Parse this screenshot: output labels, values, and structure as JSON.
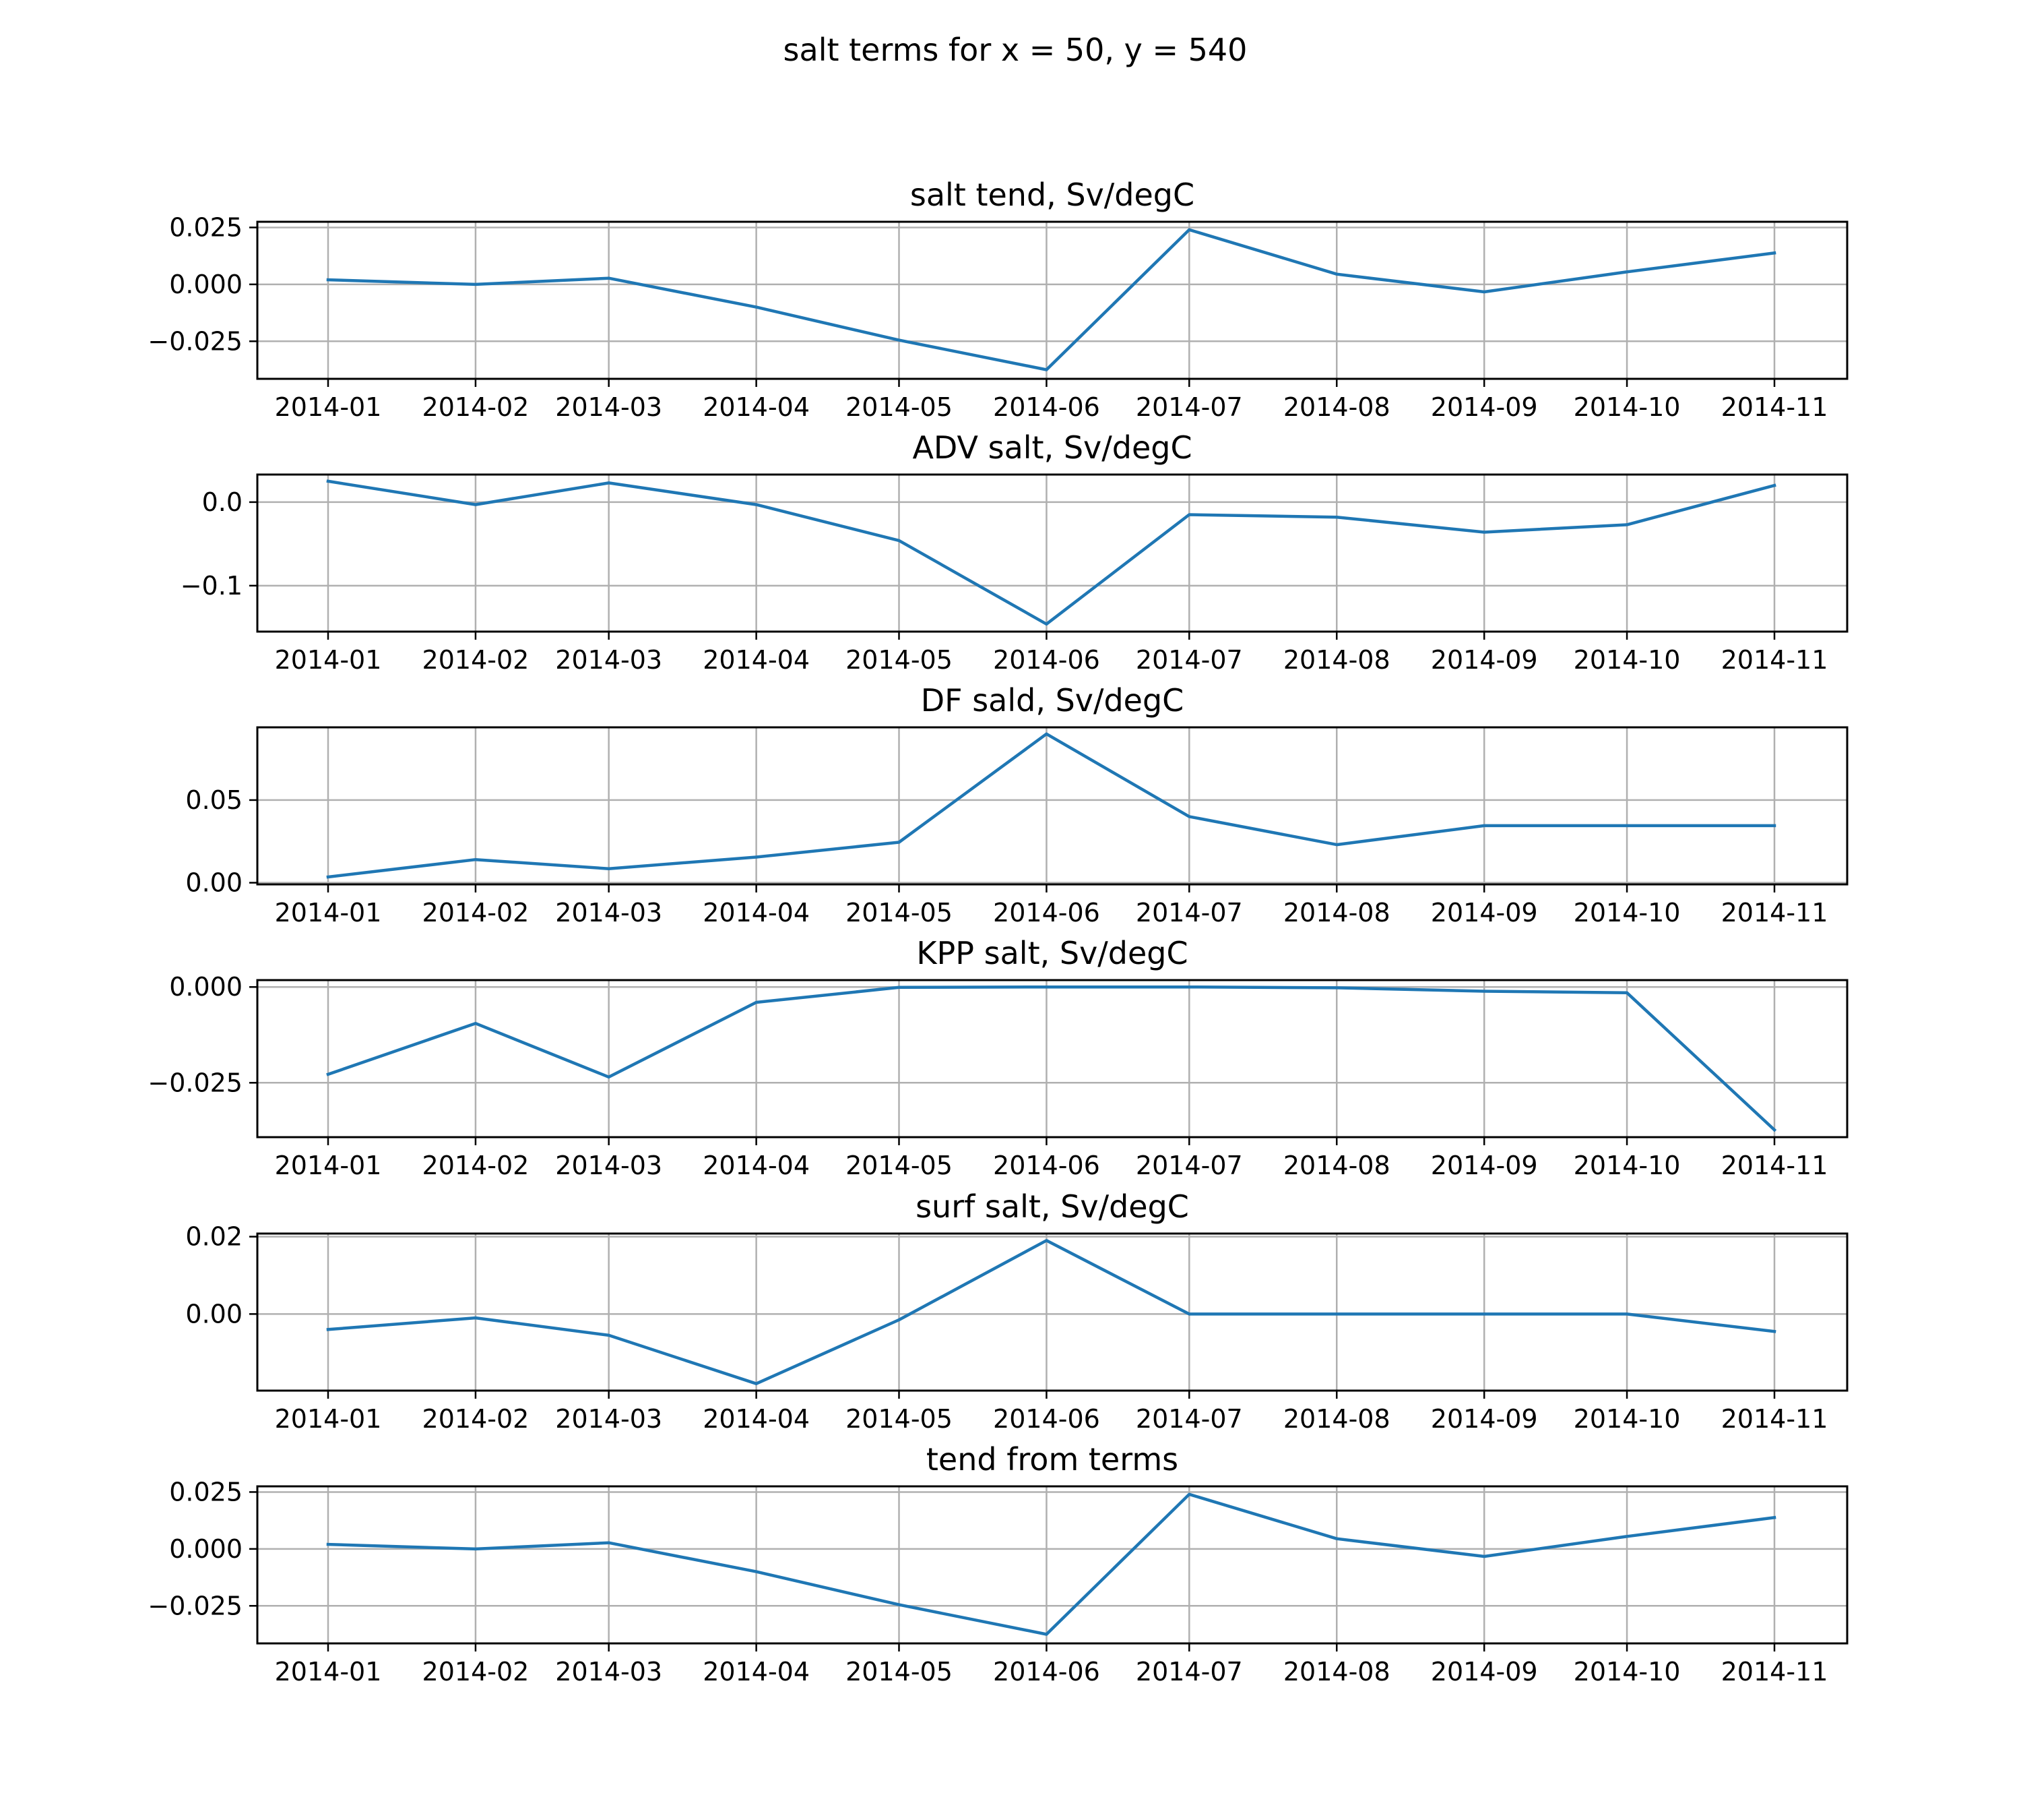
{
  "figure": {
    "suptitle": "salt terms for x = 50, y = 540"
  },
  "colors": {
    "series": "#1f77b4",
    "grid": "#b0b0b0"
  },
  "chart_data": [
    {
      "type": "line",
      "title": "salt tend, Sv/degC",
      "categories": [
        "2014-01",
        "2014-02",
        "2014-03",
        "2014-04",
        "2014-05",
        "2014-06",
        "2014-07",
        "2014-08",
        "2014-09",
        "2014-10",
        "2014-11"
      ],
      "x_day_offsets": [
        0,
        31,
        59,
        90,
        120,
        151,
        181,
        212,
        243,
        273,
        304
      ],
      "values": [
        0.002,
        0.0,
        0.0027,
        -0.01,
        -0.0245,
        -0.0375,
        0.024,
        0.0045,
        -0.0033,
        0.0055,
        0.0138
      ],
      "ylim": [
        -0.0415,
        0.0275
      ],
      "yticks": [
        -0.025,
        0.0,
        0.025
      ],
      "ytick_labels": [
        "−0.025",
        "0.000",
        "0.025"
      ],
      "grid": true
    },
    {
      "type": "line",
      "title": "ADV salt, Sv/degC",
      "categories": [
        "2014-01",
        "2014-02",
        "2014-03",
        "2014-04",
        "2014-05",
        "2014-06",
        "2014-07",
        "2014-08",
        "2014-09",
        "2014-10",
        "2014-11"
      ],
      "x_day_offsets": [
        0,
        31,
        59,
        90,
        120,
        151,
        181,
        212,
        243,
        273,
        304
      ],
      "values": [
        0.025,
        -0.003,
        0.023,
        -0.003,
        -0.046,
        -0.146,
        -0.015,
        -0.018,
        -0.036,
        -0.027,
        0.02
      ],
      "ylim": [
        -0.155,
        0.033
      ],
      "yticks": [
        -0.1,
        0.0
      ],
      "ytick_labels": [
        "−0.1",
        "0.0"
      ],
      "grid": true
    },
    {
      "type": "line",
      "title": "DF sald, Sv/degC",
      "categories": [
        "2014-01",
        "2014-02",
        "2014-03",
        "2014-04",
        "2014-05",
        "2014-06",
        "2014-07",
        "2014-08",
        "2014-09",
        "2014-10",
        "2014-11"
      ],
      "x_day_offsets": [
        0,
        31,
        59,
        90,
        120,
        151,
        181,
        212,
        243,
        273,
        304
      ],
      "values": [
        0.0035,
        0.014,
        0.0085,
        0.0155,
        0.0245,
        0.09,
        0.04,
        0.023,
        0.0345,
        0.0345,
        0.0345
      ],
      "ylim": [
        -0.001,
        0.094
      ],
      "yticks": [
        0.0,
        0.05
      ],
      "ytick_labels": [
        "0.00",
        "0.05"
      ],
      "grid": true
    },
    {
      "type": "line",
      "title": "KPP salt, Sv/degC",
      "categories": [
        "2014-01",
        "2014-02",
        "2014-03",
        "2014-04",
        "2014-05",
        "2014-06",
        "2014-07",
        "2014-08",
        "2014-09",
        "2014-10",
        "2014-11"
      ],
      "x_day_offsets": [
        0,
        31,
        59,
        90,
        120,
        151,
        181,
        212,
        243,
        273,
        304
      ],
      "values": [
        -0.0228,
        -0.0095,
        -0.0235,
        -0.004,
        -0.0001,
        0.0,
        0.0,
        -0.0002,
        -0.0011,
        -0.0015,
        -0.0373
      ],
      "ylim": [
        -0.0392,
        0.0018
      ],
      "yticks": [
        -0.025,
        0.0
      ],
      "ytick_labels": [
        "−0.025",
        "0.000"
      ],
      "grid": true
    },
    {
      "type": "line",
      "title": "surf salt, Sv/degC",
      "categories": [
        "2014-01",
        "2014-02",
        "2014-03",
        "2014-04",
        "2014-05",
        "2014-06",
        "2014-07",
        "2014-08",
        "2014-09",
        "2014-10",
        "2014-11"
      ],
      "x_day_offsets": [
        0,
        31,
        59,
        90,
        120,
        151,
        181,
        212,
        243,
        273,
        304
      ],
      "values": [
        -0.004,
        -0.001,
        -0.0055,
        -0.018,
        -0.0015,
        0.019,
        0.0,
        0.0,
        0.0,
        0.0,
        -0.0045
      ],
      "ylim": [
        -0.0198,
        0.0208
      ],
      "yticks": [
        0.0,
        0.02
      ],
      "ytick_labels": [
        "0.00",
        "0.02"
      ],
      "grid": true
    },
    {
      "type": "line",
      "title": "tend from terms",
      "categories": [
        "2014-01",
        "2014-02",
        "2014-03",
        "2014-04",
        "2014-05",
        "2014-06",
        "2014-07",
        "2014-08",
        "2014-09",
        "2014-10",
        "2014-11"
      ],
      "x_day_offsets": [
        0,
        31,
        59,
        90,
        120,
        151,
        181,
        212,
        243,
        273,
        304
      ],
      "values": [
        0.002,
        0.0,
        0.0027,
        -0.01,
        -0.0245,
        -0.0375,
        0.024,
        0.0045,
        -0.0033,
        0.0055,
        0.0138
      ],
      "ylim": [
        -0.0415,
        0.0275
      ],
      "yticks": [
        -0.025,
        0.0,
        0.025
      ],
      "ytick_labels": [
        "−0.025",
        "0.000",
        "0.025"
      ],
      "grid": true
    }
  ]
}
